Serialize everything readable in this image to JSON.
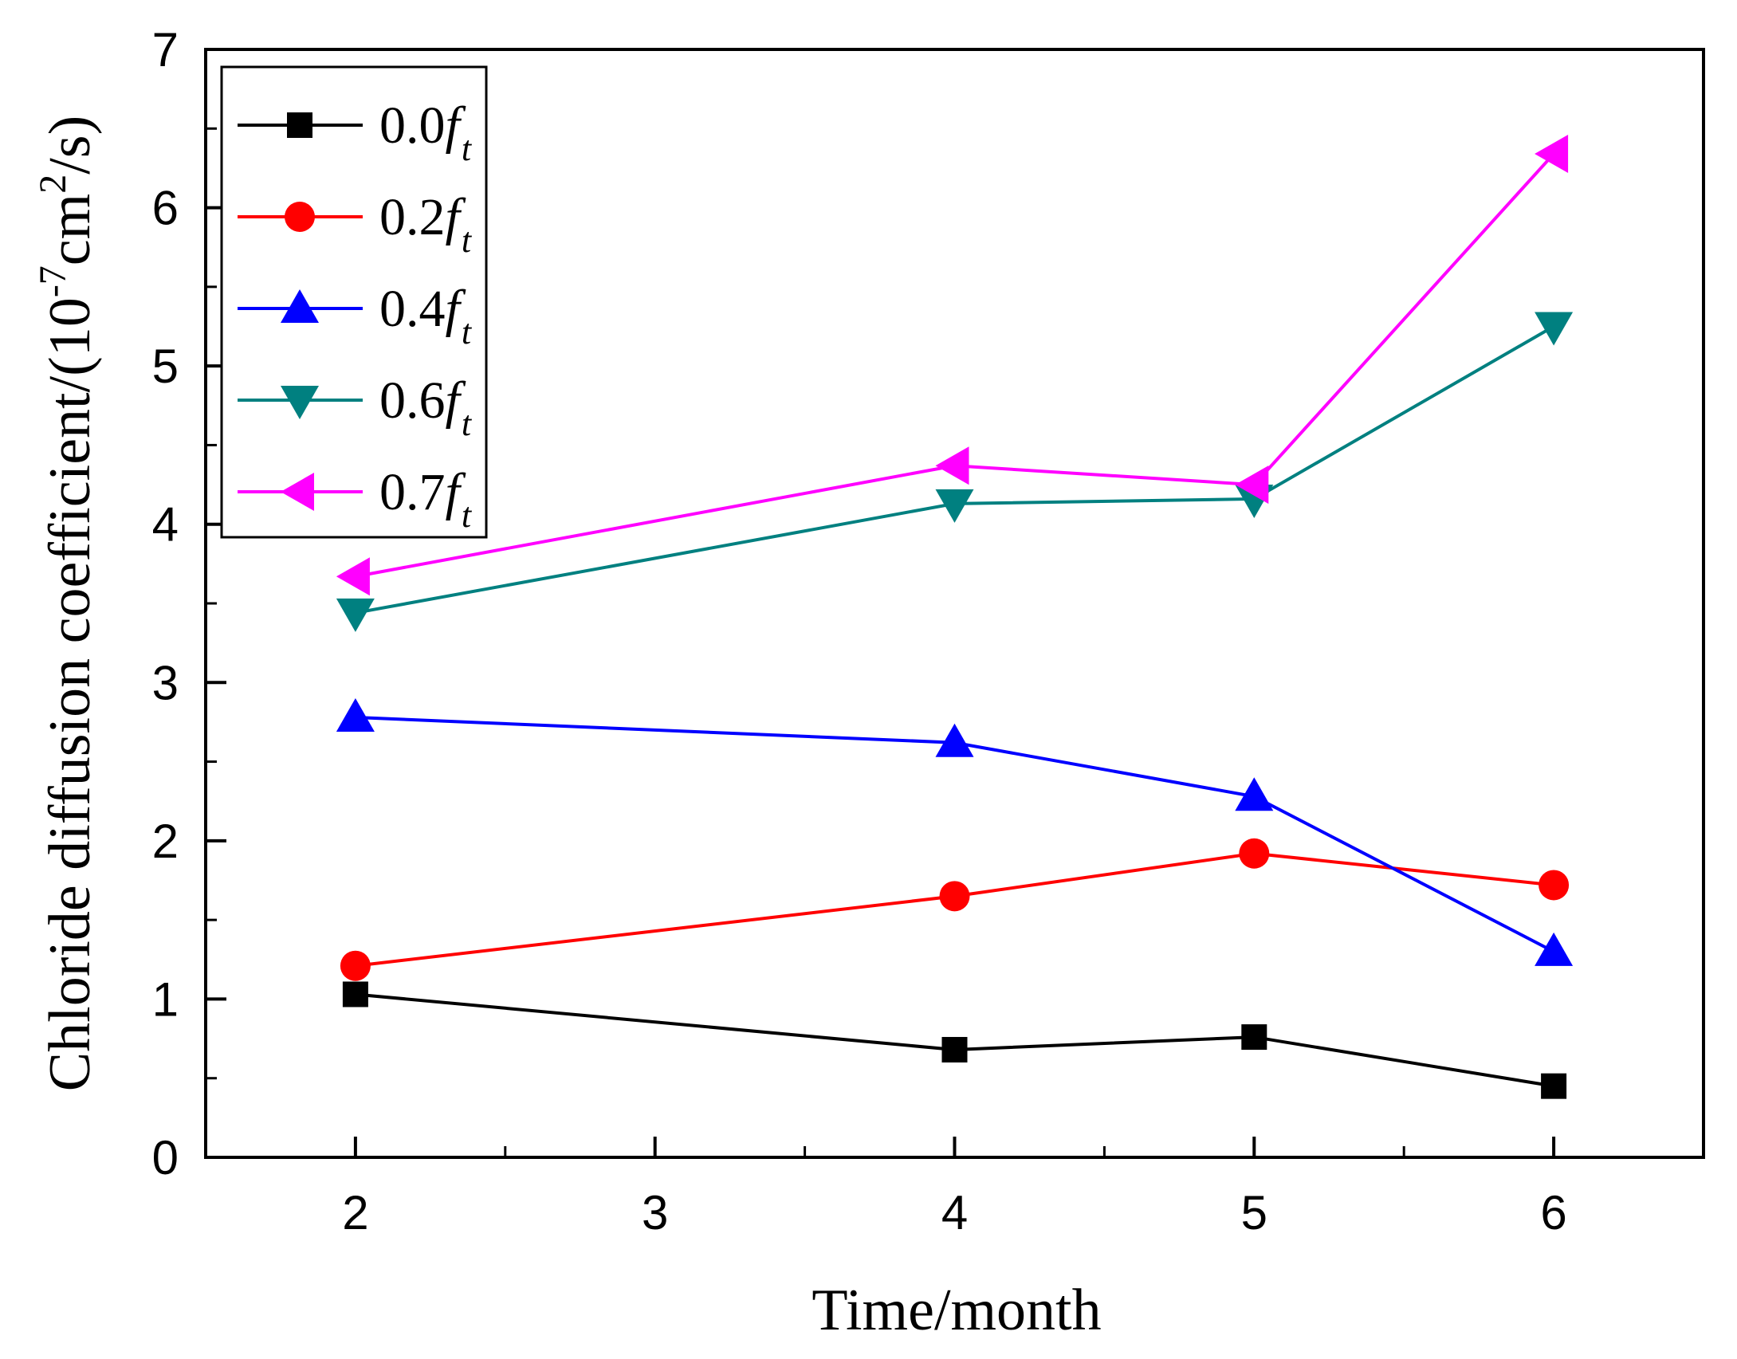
{
  "chart_data": {
    "type": "line",
    "title": "",
    "xlabel": "Time/month",
    "ylabel": "Chloride diffusion coefficient/(10-7cm2/s)",
    "ylabel_parts": {
      "main": "Chloride diffusion coefficient/(10",
      "exp1": "-7",
      "mid": "cm",
      "exp2": "2",
      "end": "/s)"
    },
    "xlim": [
      1.5,
      6.5
    ],
    "ylim": [
      0,
      7
    ],
    "x_ticks": [
      2,
      3,
      4,
      5,
      6
    ],
    "x_tick_labels": [
      "2",
      "3",
      "4",
      "5",
      "6"
    ],
    "y_ticks": [
      0,
      1,
      2,
      3,
      4,
      5,
      6,
      7
    ],
    "y_tick_labels": [
      "0",
      "1",
      "2",
      "3",
      "4",
      "5",
      "6",
      "7"
    ],
    "grid": false,
    "legend_position": "top-left",
    "x": [
      2,
      4,
      5,
      6
    ],
    "series": [
      {
        "name": "0.0ft",
        "label_num": "0.0",
        "label_f": "f",
        "label_sub": "t",
        "color": "#000000",
        "marker": "square",
        "values": [
          1.03,
          0.68,
          0.76,
          0.45
        ]
      },
      {
        "name": "0.2ft",
        "label_num": "0.2",
        "label_f": "f",
        "label_sub": "t",
        "color": "#ff0000",
        "marker": "circle",
        "values": [
          1.21,
          1.65,
          1.92,
          1.72
        ]
      },
      {
        "name": "0.4ft",
        "label_num": "0.4",
        "label_f": "f",
        "label_sub": "t",
        "color": "#0000ff",
        "marker": "triangle-up",
        "values": [
          2.78,
          2.62,
          2.28,
          1.3
        ]
      },
      {
        "name": "0.6ft",
        "label_num": "0.6",
        "label_f": "f",
        "label_sub": "t",
        "color": "#008080",
        "marker": "triangle-down",
        "values": [
          3.44,
          4.13,
          4.16,
          5.25
        ]
      },
      {
        "name": "0.7ft",
        "label_num": "0.7",
        "label_f": "f",
        "label_sub": "t",
        "color": "#ff00ff",
        "marker": "triangle-left",
        "values": [
          3.67,
          4.37,
          4.25,
          6.34
        ]
      }
    ]
  }
}
